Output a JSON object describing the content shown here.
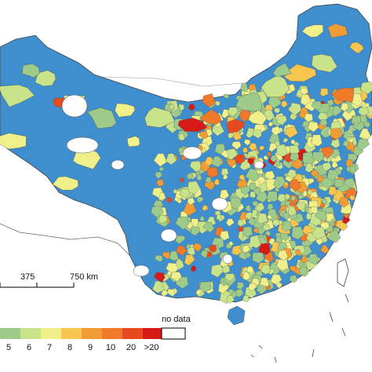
{
  "map": {
    "land_color": "#3f8fcf",
    "border_color": "#444444",
    "no_data_color": "#ffffff"
  },
  "scale_bar": {
    "labels": [
      "375",
      "750 km"
    ]
  },
  "legend": {
    "items": [
      {
        "label": "5",
        "color": "#9ecb8a"
      },
      {
        "label": "6",
        "color": "#c9e38a"
      },
      {
        "label": "7",
        "color": "#f0f08a"
      },
      {
        "label": "8",
        "color": "#f7c64f"
      },
      {
        "label": "9",
        "color": "#f29c35"
      },
      {
        "label": "10",
        "color": "#f07a2a"
      },
      {
        "label": "20",
        "color": "#e84a20"
      },
      {
        "label": ">20",
        "color": "#d61a15"
      }
    ],
    "no_data_label": "no data"
  }
}
